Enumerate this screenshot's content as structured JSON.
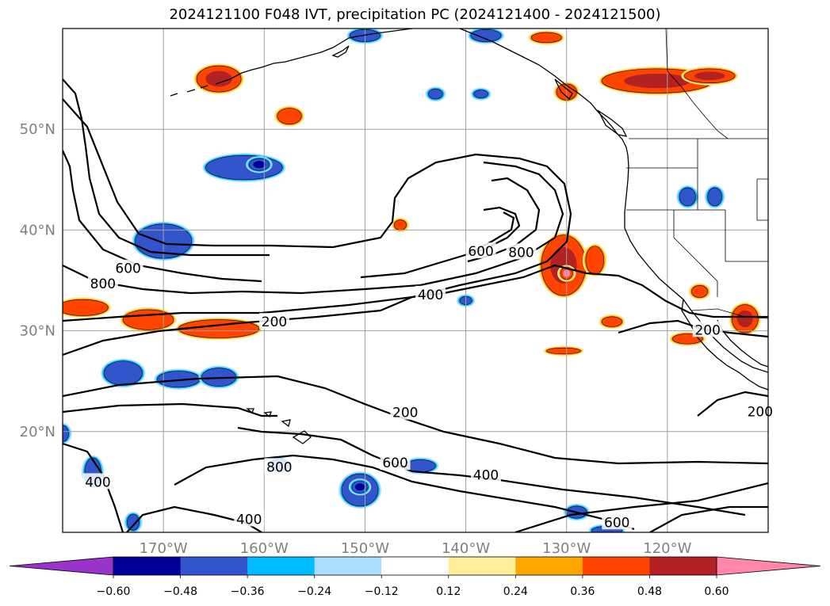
{
  "title": "2024121100 F048 IVT, precipitation PC (2024121400 - 2024121500)",
  "map": {
    "projection": "PlateCarree",
    "lon_range": [
      -180,
      -110
    ],
    "lat_range": [
      10,
      60
    ],
    "lon_ticks": [
      "170°W",
      "160°W",
      "150°W",
      "140°W",
      "130°W",
      "120°W"
    ],
    "lat_ticks": [
      "50°N",
      "40°N",
      "30°N",
      "20°N"
    ],
    "grid": true,
    "features": [
      "coastlines",
      "country-borders",
      "us-state-borders"
    ]
  },
  "ivt_contours": {
    "levels": [
      200,
      400,
      600,
      800
    ],
    "labels": [
      {
        "text": "800",
        "lon": -176.0,
        "lat": 34.7
      },
      {
        "text": "600",
        "lon": -173.5,
        "lat": 36.2
      },
      {
        "text": "200",
        "lon": -159.0,
        "lat": 30.9
      },
      {
        "text": "400",
        "lon": -143.5,
        "lat": 33.6
      },
      {
        "text": "600",
        "lon": -138.5,
        "lat": 37.9
      },
      {
        "text": "800",
        "lon": -134.5,
        "lat": 37.8
      },
      {
        "text": "200",
        "lon": -116.0,
        "lat": 30.1
      },
      {
        "text": "200",
        "lon": -146.0,
        "lat": 21.9
      },
      {
        "text": "600",
        "lon": -147.0,
        "lat": 16.9
      },
      {
        "text": "400",
        "lon": -138.0,
        "lat": 15.7
      },
      {
        "text": "800",
        "lon": -158.5,
        "lat": 16.5
      },
      {
        "text": "400",
        "lon": -176.5,
        "lat": 15.0
      },
      {
        "text": "400",
        "lon": -161.5,
        "lat": 11.3
      },
      {
        "text": "600",
        "lon": -125.0,
        "lat": 11.0
      },
      {
        "text": "200",
        "lon": -110.8,
        "lat": 22.0
      }
    ]
  },
  "colorbar": {
    "ticks": [
      "−0.60",
      "−0.48",
      "−0.36",
      "−0.24",
      "−0.12",
      "0.12",
      "0.24",
      "0.36",
      "0.48",
      "0.60"
    ],
    "colors": [
      "#9933cc",
      "#000099",
      "#3355cc",
      "#00bbff",
      "#aaddff",
      "#ffffff",
      "#ffee99",
      "#ffa500",
      "#ff4400",
      "#b22222",
      "#ff88aa"
    ]
  },
  "precip_anomalies": [
    {
      "lon": -164.5,
      "lat": 55.0,
      "rx": 2.2,
      "ry": 1.3,
      "level": 4
    },
    {
      "lon": -157.5,
      "lat": 51.3,
      "rx": 1.2,
      "ry": 0.8,
      "level": 3
    },
    {
      "lon": -121.0,
      "lat": 54.8,
      "rx": 5.5,
      "ry": 1.2,
      "level": 4
    },
    {
      "lon": -115.8,
      "lat": 55.3,
      "rx": 2.5,
      "ry": 0.7,
      "level": 4
    },
    {
      "lon": -130.0,
      "lat": 53.7,
      "rx": 1.0,
      "ry": 0.8,
      "level": 3
    },
    {
      "lon": -132.0,
      "lat": 59.1,
      "rx": 1.5,
      "ry": 0.5,
      "level": 3
    },
    {
      "lon": -130.3,
      "lat": 36.5,
      "rx": 2.2,
      "ry": 3.0,
      "level": 4
    },
    {
      "lon": -130.0,
      "lat": 35.7,
      "rx": 0.6,
      "ry": 0.6,
      "level": 5
    },
    {
      "lon": -127.2,
      "lat": 37.0,
      "rx": 0.9,
      "ry": 1.4,
      "level": 3
    },
    {
      "lon": -112.3,
      "lat": 31.2,
      "rx": 1.3,
      "ry": 1.4,
      "level": 4
    },
    {
      "lon": -116.8,
      "lat": 33.9,
      "rx": 0.8,
      "ry": 0.6,
      "level": 3
    },
    {
      "lon": -118.0,
      "lat": 29.2,
      "rx": 1.5,
      "ry": 0.5,
      "level": 3
    },
    {
      "lon": -178.0,
      "lat": 32.3,
      "rx": 2.5,
      "ry": 0.8,
      "level": 3
    },
    {
      "lon": -171.5,
      "lat": 31.1,
      "rx": 2.5,
      "ry": 1.0,
      "level": 3
    },
    {
      "lon": -164.5,
      "lat": 30.2,
      "rx": 4.0,
      "ry": 0.9,
      "level": 3
    },
    {
      "lon": -130.3,
      "lat": 28.0,
      "rx": 1.7,
      "ry": 0.3,
      "level": 3
    },
    {
      "lon": -125.5,
      "lat": 30.9,
      "rx": 1.0,
      "ry": 0.5,
      "level": 3
    },
    {
      "lon": -146.5,
      "lat": 40.5,
      "rx": 0.6,
      "ry": 0.5,
      "level": 3
    },
    {
      "lon": -170.0,
      "lat": 38.9,
      "rx": 2.8,
      "ry": 1.7,
      "level": -3
    },
    {
      "lon": -162.0,
      "lat": 46.2,
      "rx": 3.8,
      "ry": 1.2,
      "level": -3
    },
    {
      "lon": -160.5,
      "lat": 46.5,
      "rx": 1.0,
      "ry": 0.6,
      "level": -4
    },
    {
      "lon": -174.0,
      "lat": 25.8,
      "rx": 1.9,
      "ry": 1.2,
      "level": -3
    },
    {
      "lon": -168.5,
      "lat": 25.2,
      "rx": 2.1,
      "ry": 0.8,
      "level": -3
    },
    {
      "lon": -164.5,
      "lat": 25.4,
      "rx": 1.7,
      "ry": 0.9,
      "level": -3
    },
    {
      "lon": -150.5,
      "lat": 14.2,
      "rx": 1.8,
      "ry": 1.6,
      "level": -3
    },
    {
      "lon": -150.5,
      "lat": 14.5,
      "rx": 0.8,
      "ry": 0.6,
      "level": -4
    },
    {
      "lon": -144.5,
      "lat": 16.6,
      "rx": 1.5,
      "ry": 0.6,
      "level": -3
    },
    {
      "lon": -177.0,
      "lat": 16.0,
      "rx": 0.8,
      "ry": 1.4,
      "level": -3
    },
    {
      "lon": -158.5,
      "lat": 16.7,
      "rx": 0.9,
      "ry": 0.6,
      "level": -3
    },
    {
      "lon": -173.0,
      "lat": 11.0,
      "rx": 0.6,
      "ry": 0.8,
      "level": -3
    },
    {
      "lon": -143.0,
      "lat": 53.5,
      "rx": 0.7,
      "ry": 0.5,
      "level": -3
    },
    {
      "lon": -138.5,
      "lat": 53.5,
      "rx": 0.7,
      "ry": 0.4,
      "level": -3
    },
    {
      "lon": -150.0,
      "lat": 59.3,
      "rx": 1.5,
      "ry": 0.6,
      "level": -3
    },
    {
      "lon": -138.0,
      "lat": 59.3,
      "rx": 1.5,
      "ry": 0.6,
      "level": -3
    },
    {
      "lon": -118.0,
      "lat": 43.3,
      "rx": 0.8,
      "ry": 0.9,
      "level": -3
    },
    {
      "lon": -115.3,
      "lat": 43.3,
      "rx": 0.7,
      "ry": 0.9,
      "level": -3
    },
    {
      "lon": -126.0,
      "lat": 10.2,
      "rx": 1.5,
      "ry": 0.4,
      "level": -3
    },
    {
      "lon": -129.0,
      "lat": 12.0,
      "rx": 1.0,
      "ry": 0.6,
      "level": -3
    },
    {
      "lon": -140.0,
      "lat": 33.0,
      "rx": 0.6,
      "ry": 0.4,
      "level": -3
    },
    {
      "lon": -180.0,
      "lat": 19.8,
      "rx": 0.6,
      "ry": 0.8,
      "level": -3
    }
  ]
}
